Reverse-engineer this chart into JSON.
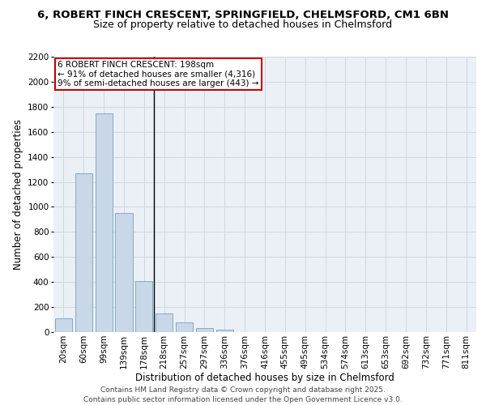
{
  "title1": "6, ROBERT FINCH CRESCENT, SPRINGFIELD, CHELMSFORD, CM1 6BN",
  "title2": "Size of property relative to detached houses in Chelmsford",
  "xlabel": "Distribution of detached houses by size in Chelmsford",
  "ylabel": "Number of detached properties",
  "categories": [
    "20sqm",
    "60sqm",
    "99sqm",
    "139sqm",
    "178sqm",
    "218sqm",
    "257sqm",
    "297sqm",
    "336sqm",
    "376sqm",
    "416sqm",
    "455sqm",
    "495sqm",
    "534sqm",
    "574sqm",
    "613sqm",
    "653sqm",
    "692sqm",
    "732sqm",
    "771sqm",
    "811sqm"
  ],
  "values": [
    110,
    1270,
    1750,
    950,
    410,
    150,
    75,
    35,
    20,
    0,
    0,
    0,
    0,
    0,
    0,
    0,
    0,
    0,
    0,
    0,
    0
  ],
  "bar_color": "#c8d8e8",
  "bar_edge_color": "#7aa0be",
  "highlight_label": "6 ROBERT FINCH CRESCENT: 198sqm",
  "annotation_line1": "← 91% of detached houses are smaller (4,316)",
  "annotation_line2": "9% of semi-detached houses are larger (443) →",
  "annotation_box_facecolor": "#ffffff",
  "annotation_box_edgecolor": "#cc0000",
  "vline_color": "#000000",
  "ylim": [
    0,
    2200
  ],
  "yticks": [
    0,
    200,
    400,
    600,
    800,
    1000,
    1200,
    1400,
    1600,
    1800,
    2000,
    2200
  ],
  "grid_color": "#d0d8e0",
  "bg_color": "#eaf0f6",
  "footer1": "Contains HM Land Registry data © Crown copyright and database right 2025.",
  "footer2": "Contains public sector information licensed under the Open Government Licence v3.0.",
  "title_fontsize": 9.5,
  "subtitle_fontsize": 9,
  "axis_label_fontsize": 8.5,
  "tick_fontsize": 7.5,
  "annot_fontsize": 7.5,
  "footer_fontsize": 6.5
}
